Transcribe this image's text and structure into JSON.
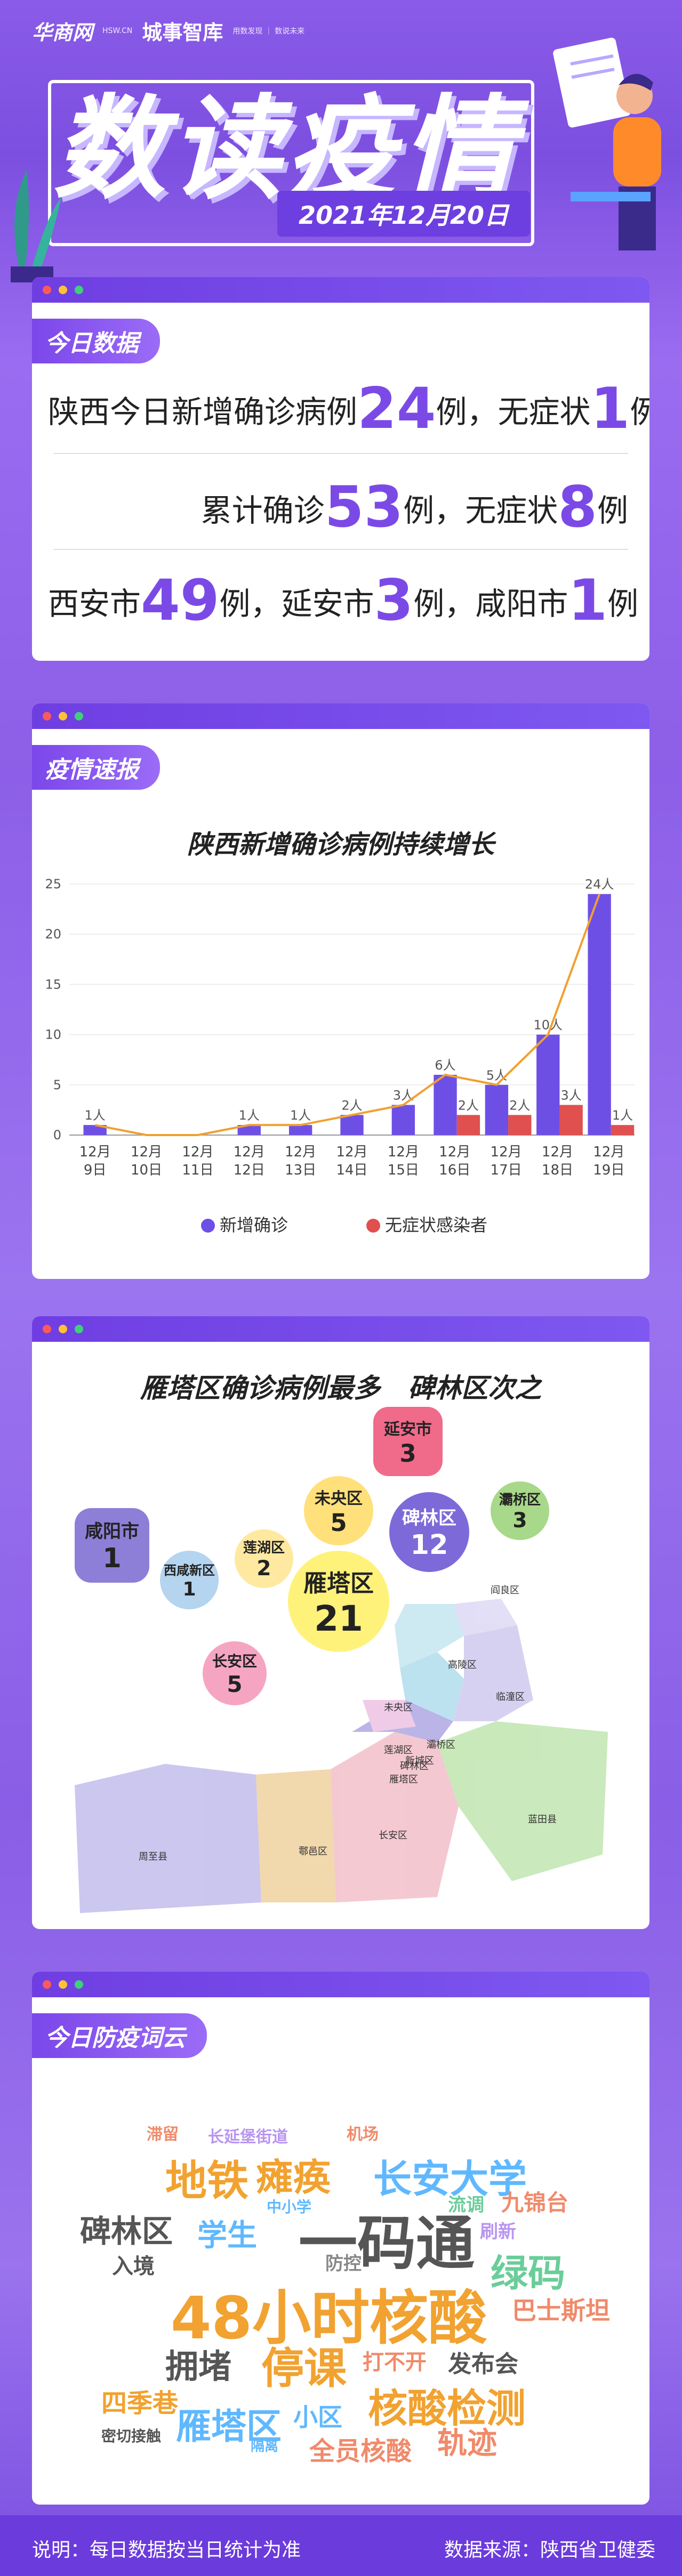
{
  "header": {
    "brand1": "华商网",
    "brand1_sub": "HSW.CN",
    "brand2": "城事智库",
    "brand2_sub": "用数发现 ｜ 数说未来",
    "title": "数读疫情",
    "date": "2021年12月20日"
  },
  "today": {
    "pill": "今日数据",
    "line1_pre": "陕西今日新增确诊病例",
    "line1_n1": "24",
    "line1_mid": "例，无症状",
    "line1_n2": "1",
    "line1_post": "例",
    "line2_pre": "累计确诊",
    "line2_n1": "53",
    "line2_mid": "例，无症状",
    "line2_n2": "8",
    "line2_post": "例",
    "line3_a": "西安市",
    "line3_n1": "49",
    "line3_b": "例，延安市",
    "line3_n2": "3",
    "line3_c": "例，咸阳市",
    "line3_n3": "1",
    "line3_d": "例"
  },
  "report": {
    "pill": "疫情速报",
    "chart_title": "陕西新增确诊病例持续增长"
  },
  "chart_data": {
    "type": "bar",
    "title": "陕西新增确诊病例持续增长",
    "categories": [
      "12月9日",
      "12月10日",
      "12月11日",
      "12月12日",
      "12月13日",
      "12月14日",
      "12月15日",
      "12月16日",
      "12月17日",
      "12月18日",
      "12月19日"
    ],
    "cat_line1": [
      "12月",
      "12月",
      "12月",
      "12月",
      "12月",
      "12月",
      "12月",
      "12月",
      "12月",
      "12月",
      "12月"
    ],
    "cat_line2": [
      "9日",
      "10日",
      "11日",
      "12日",
      "13日",
      "14日",
      "15日",
      "16日",
      "17日",
      "18日",
      "19日"
    ],
    "series": [
      {
        "name": "新增确诊",
        "color": "#6e4fe6",
        "values": [
          1,
          0,
          0,
          1,
          1,
          2,
          3,
          6,
          5,
          10,
          24
        ],
        "labels": [
          "1人",
          "",
          "",
          "1人",
          "1人",
          "2人",
          "3人",
          "6人",
          "5人",
          "10人",
          "24人"
        ]
      },
      {
        "name": "无症状感染者",
        "color": "#e0504e",
        "values": [
          0,
          0,
          0,
          0,
          0,
          0,
          0,
          2,
          2,
          3,
          1
        ],
        "labels": [
          "",
          "",
          "",
          "",
          "",
          "",
          "",
          "2人",
          "2人",
          "3人",
          "1人"
        ]
      }
    ],
    "yticks": [
      "0",
      "5",
      "10",
      "15",
      "20",
      "25"
    ],
    "ylim": [
      0,
      26
    ],
    "line_color": "#f0a030",
    "legend_position": "bottom"
  },
  "map": {
    "title": "雁塔区确诊病例最多   碑林区次之",
    "bubbles": [
      {
        "name": "延安市",
        "count": "3"
      },
      {
        "name": "咸阳市",
        "count": "1"
      },
      {
        "name": "未央区",
        "count": "5"
      },
      {
        "name": "碑林区",
        "count": "12"
      },
      {
        "name": "灞桥区",
        "count": "3"
      },
      {
        "name": "莲湖区",
        "count": "2"
      },
      {
        "name": "西咸新区",
        "count": "1"
      },
      {
        "name": "雁塔区",
        "count": "21"
      },
      {
        "name": "长安区",
        "count": "5"
      }
    ],
    "districts": [
      "阎良区",
      "高陵区",
      "临潼区",
      "未央区",
      "灞桥区",
      "莲湖区",
      "新城区",
      "碑林区",
      "雁塔区",
      "周至县",
      "鄠邑区",
      "长安区",
      "蓝田县"
    ]
  },
  "cloud": {
    "pill": "今日防疫词云",
    "words": [
      "滞留",
      "长延堡街道",
      "机场",
      "地铁",
      "瘫痪",
      "长安大学",
      "中小学",
      "流调",
      "九锦台",
      "碑林区",
      "学生",
      "一码通",
      "防控",
      "刷新",
      "绿码",
      "入境",
      "48小时核酸",
      "巴士斯坦",
      "拥堵",
      "停课",
      "打不开",
      "发布会",
      "四季巷",
      "核酸检测",
      "雁塔区",
      "小区",
      "密切接触",
      "隔离",
      "全员核酸",
      "轨迹"
    ]
  },
  "footer": {
    "note": "说明：每日数据按当日统计为准",
    "source": "数据来源：陕西省卫健委"
  }
}
